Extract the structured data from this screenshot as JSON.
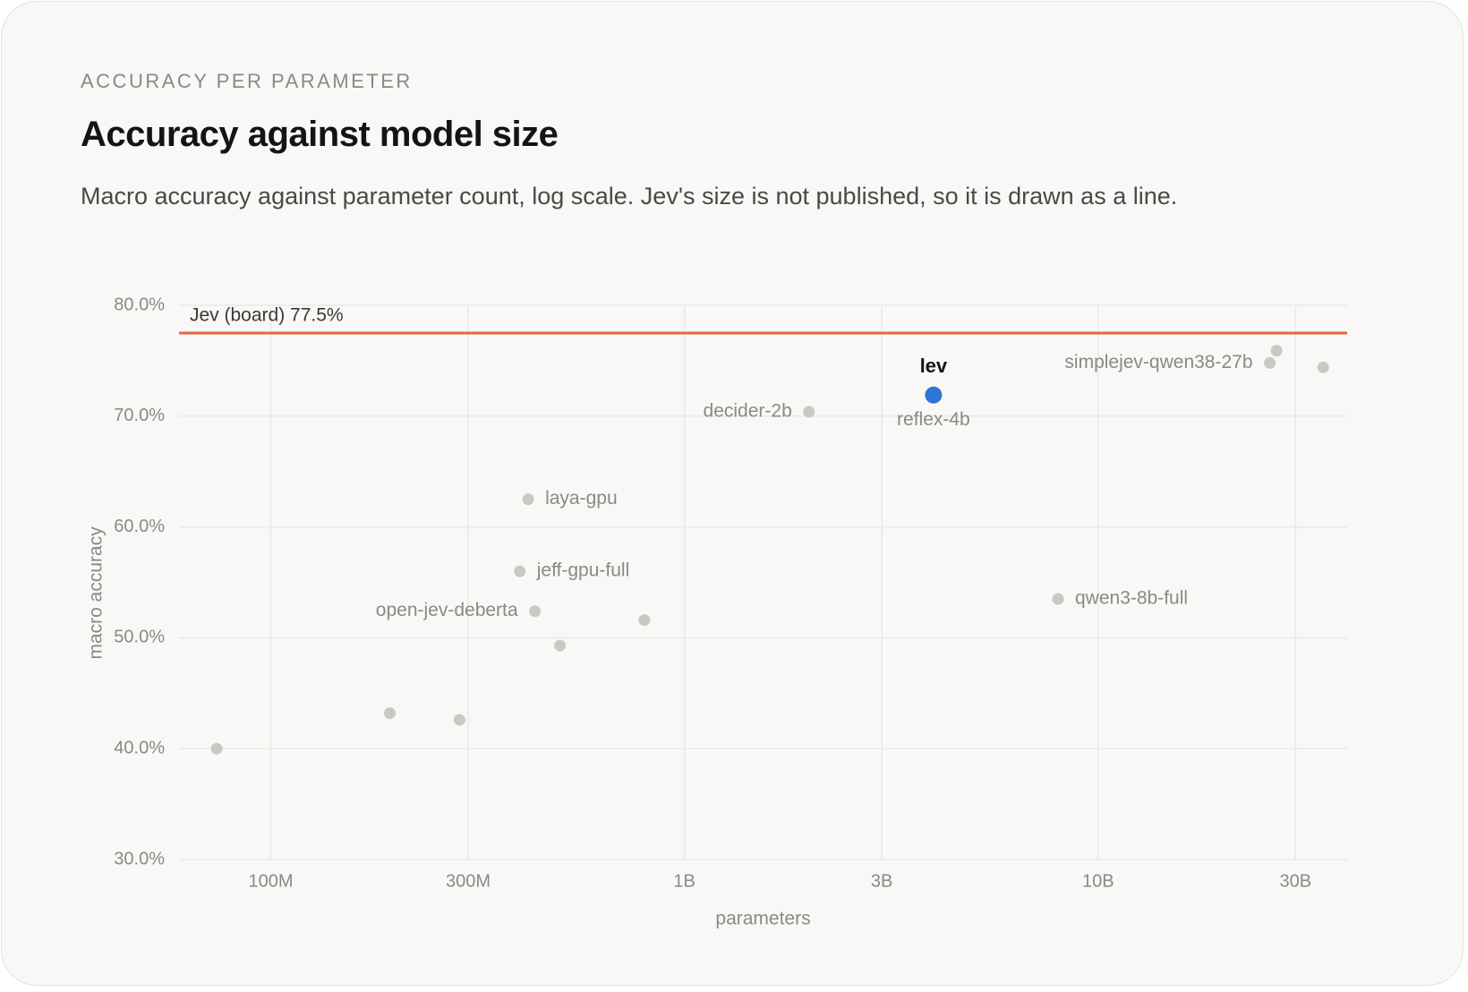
{
  "header": {
    "eyebrow": "ACCURACY PER PARAMETER",
    "title": "Accuracy against model size",
    "subtitle": "Macro accuracy against parameter count, log scale. Jev's size is not published, so it is drawn as a line."
  },
  "chart_data": {
    "type": "scatter",
    "x_label": "parameters",
    "y_label": "macro accuracy",
    "xscale": "log",
    "grid": true,
    "xlim": [
      60000000,
      40000000000
    ],
    "xticks": [
      {
        "value": 100000000,
        "label": "100M"
      },
      {
        "value": 300000000,
        "label": "300M"
      },
      {
        "value": 1000000000,
        "label": "1B"
      },
      {
        "value": 3000000000,
        "label": "3B"
      },
      {
        "value": 10000000000,
        "label": "10B"
      },
      {
        "value": 30000000000,
        "label": "30B"
      }
    ],
    "ylim": [
      30,
      80
    ],
    "yticks": [
      {
        "value": 30,
        "label": "30.0%"
      },
      {
        "value": 40,
        "label": "40.0%"
      },
      {
        "value": 50,
        "label": "50.0%"
      },
      {
        "value": 60,
        "label": "60.0%"
      },
      {
        "value": 70,
        "label": "70.0%"
      },
      {
        "value": 80,
        "label": "80.0%"
      }
    ],
    "reference_lines": [
      {
        "value": 77.5,
        "label": "Jev (board) 77.5%",
        "color": "#e8633f"
      }
    ],
    "series": [
      {
        "color": "#c9c8c3",
        "x": [
          74000000,
          194000000,
          286000000,
          419000000,
          400000000,
          435000000,
          500000000,
          800000000,
          2000000000,
          8000000000,
          26000000000,
          27000000000,
          35000000000
        ],
        "values": [
          40.0,
          43.2,
          42.6,
          62.5,
          56.0,
          52.4,
          49.3,
          51.6,
          70.4,
          53.5,
          74.8,
          75.9,
          74.4
        ],
        "labels": [
          null,
          null,
          null,
          "laya-gpu",
          "jeff-gpu-full",
          "open-jev-deberta",
          null,
          null,
          "decider-2b",
          "qwen3-8b-full",
          "simplejev-qwen38-27b",
          null,
          null
        ]
      },
      {
        "name": "lev",
        "color": "#2f74d6",
        "x": [
          4000000000
        ],
        "values": [
          71.9
        ],
        "labels": [
          "reflex-4b"
        ]
      }
    ]
  }
}
